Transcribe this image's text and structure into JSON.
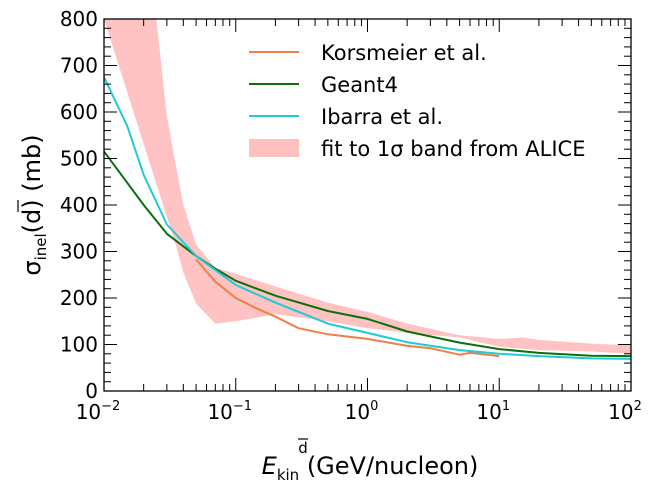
{
  "chart_data": {
    "type": "line",
    "xscale": "log",
    "xlim": [
      0.01,
      100
    ],
    "ylim": [
      0,
      800
    ],
    "x_ticks": [
      0.01,
      0.1,
      1,
      10,
      100
    ],
    "x_tick_labels": [
      {
        "base": "10",
        "exp": "−2"
      },
      {
        "base": "10",
        "exp": "−1"
      },
      {
        "base": "10",
        "exp": "0"
      },
      {
        "base": "10",
        "exp": "1"
      },
      {
        "base": "10",
        "exp": "2"
      }
    ],
    "y_ticks": [
      0,
      100,
      200,
      300,
      400,
      500,
      600,
      700,
      800
    ],
    "y_tick_labels": [
      "0",
      "100",
      "200",
      "300",
      "400",
      "500",
      "600",
      "700",
      "800"
    ],
    "xlabel": {
      "italic": "E",
      "sub": "kin",
      "sup": "d",
      "rest": " (GeV/nucleon)"
    },
    "ylabel": {
      "sym": "σ",
      "sub": "inel",
      "arg": "d",
      "rest": " (mb)"
    },
    "legend_position": "top-right",
    "series": [
      {
        "name": "Korsmeier et al.",
        "color": "#f07f45",
        "x": [
          0.05,
          0.07,
          0.1,
          0.15,
          0.2,
          0.3,
          0.5,
          1.0,
          2.0,
          3.0,
          5.0,
          6.0,
          10.0
        ],
        "y": [
          283,
          235,
          200,
          175,
          160,
          135,
          122,
          112,
          97,
          92,
          78,
          82,
          75
        ]
      },
      {
        "name": "Geant4",
        "color": "#0b700b",
        "x": [
          0.01,
          0.015,
          0.02,
          0.03,
          0.05,
          0.07,
          0.1,
          0.2,
          0.5,
          1,
          2,
          5,
          10,
          20,
          50,
          100
        ],
        "y": [
          515,
          448,
          400,
          338,
          290,
          263,
          237,
          205,
          172,
          155,
          128,
          104,
          90,
          82,
          76,
          75
        ]
      },
      {
        "name": "Ibarra et al.",
        "color": "#1ecad6",
        "x": [
          0.01,
          0.015,
          0.02,
          0.03,
          0.05,
          0.07,
          0.1,
          0.2,
          0.5,
          1,
          2,
          5,
          10,
          20,
          50,
          100
        ],
        "y": [
          675,
          570,
          465,
          358,
          290,
          260,
          228,
          190,
          145,
          125,
          105,
          88,
          80,
          75,
          70,
          69
        ]
      }
    ],
    "band": {
      "name": "fit to 1σ band from ALICE",
      "color": "#ffc0c0",
      "upper_x": [
        0.01,
        0.015,
        0.02,
        0.025,
        0.03,
        0.04,
        0.05,
        0.07,
        0.1,
        0.2,
        0.5,
        1,
        2,
        5,
        10,
        15,
        20,
        50,
        100
      ],
      "upper_y": [
        800,
        800,
        800,
        800,
        590,
        400,
        315,
        265,
        252,
        225,
        190,
        170,
        145,
        120,
        112,
        115,
        110,
        102,
        98
      ],
      "lower_x": [
        100,
        50,
        20,
        10,
        5,
        2,
        1,
        0.5,
        0.2,
        0.1,
        0.07,
        0.05,
        0.04,
        0.035
      ],
      "lower_y": [
        80,
        85,
        88,
        95,
        115,
        125,
        135,
        150,
        165,
        150,
        145,
        188,
        255,
        315
      ]
    }
  }
}
